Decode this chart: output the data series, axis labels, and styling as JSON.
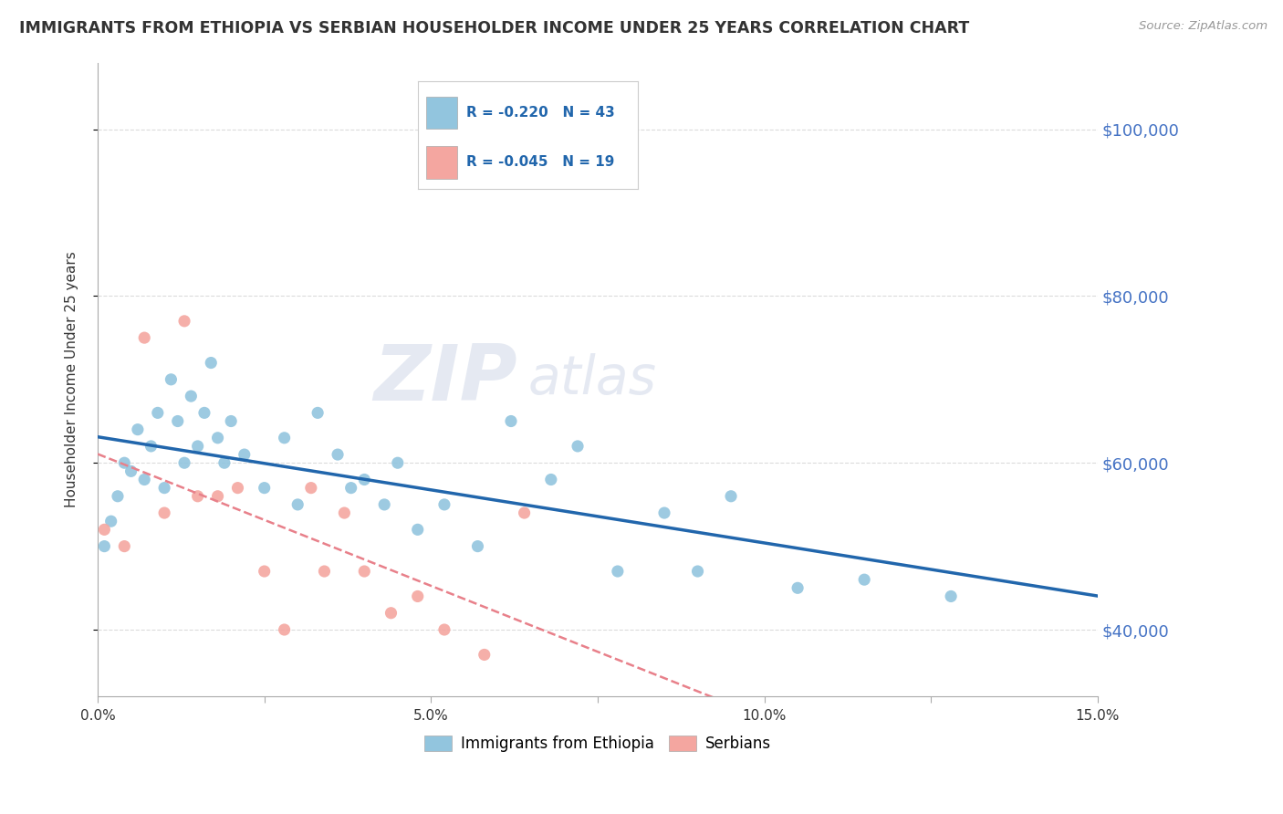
{
  "title": "IMMIGRANTS FROM ETHIOPIA VS SERBIAN HOUSEHOLDER INCOME UNDER 25 YEARS CORRELATION CHART",
  "source": "Source: ZipAtlas.com",
  "ylabel": "Householder Income Under 25 years",
  "legend1_label": "Immigrants from Ethiopia",
  "legend2_label": "Serbians",
  "r1": "-0.220",
  "n1": "43",
  "r2": "-0.045",
  "n2": "19",
  "xlim": [
    0.0,
    0.15
  ],
  "ylim": [
    32000,
    108000
  ],
  "yticks": [
    40000,
    60000,
    80000,
    100000
  ],
  "ytick_labels": [
    "$40,000",
    "$60,000",
    "$80,000",
    "$100,000"
  ],
  "xticks": [
    0.0,
    0.025,
    0.05,
    0.075,
    0.1,
    0.125,
    0.15
  ],
  "xtick_labels": [
    "0.0%",
    "",
    "5.0%",
    "",
    "10.0%",
    "",
    "15.0%"
  ],
  "background_color": "#ffffff",
  "scatter_color1": "#92C5DE",
  "scatter_color2": "#F4A6A0",
  "line_color1": "#2166AC",
  "line_color2": "#E8808A",
  "watermark_zip": "ZIP",
  "watermark_atlas": "atlas",
  "ethiopia_x": [
    0.001,
    0.002,
    0.003,
    0.004,
    0.005,
    0.006,
    0.007,
    0.008,
    0.009,
    0.01,
    0.011,
    0.012,
    0.013,
    0.014,
    0.015,
    0.016,
    0.017,
    0.018,
    0.019,
    0.02,
    0.022,
    0.025,
    0.028,
    0.03,
    0.033,
    0.036,
    0.038,
    0.04,
    0.043,
    0.045,
    0.048,
    0.052,
    0.057,
    0.062,
    0.068,
    0.072,
    0.078,
    0.085,
    0.09,
    0.095,
    0.105,
    0.115,
    0.128
  ],
  "ethiopia_y": [
    50000,
    53000,
    56000,
    60000,
    59000,
    64000,
    58000,
    62000,
    66000,
    57000,
    70000,
    65000,
    60000,
    68000,
    62000,
    66000,
    72000,
    63000,
    60000,
    65000,
    61000,
    57000,
    63000,
    55000,
    66000,
    61000,
    57000,
    58000,
    55000,
    60000,
    52000,
    55000,
    50000,
    65000,
    58000,
    62000,
    47000,
    54000,
    47000,
    56000,
    45000,
    46000,
    44000
  ],
  "serbian_x": [
    0.001,
    0.004,
    0.007,
    0.01,
    0.013,
    0.015,
    0.018,
    0.021,
    0.025,
    0.028,
    0.032,
    0.034,
    0.037,
    0.04,
    0.044,
    0.048,
    0.052,
    0.058,
    0.064
  ],
  "serbian_y": [
    52000,
    50000,
    75000,
    54000,
    77000,
    56000,
    56000,
    57000,
    47000,
    40000,
    57000,
    47000,
    54000,
    47000,
    42000,
    44000,
    40000,
    37000,
    54000
  ]
}
